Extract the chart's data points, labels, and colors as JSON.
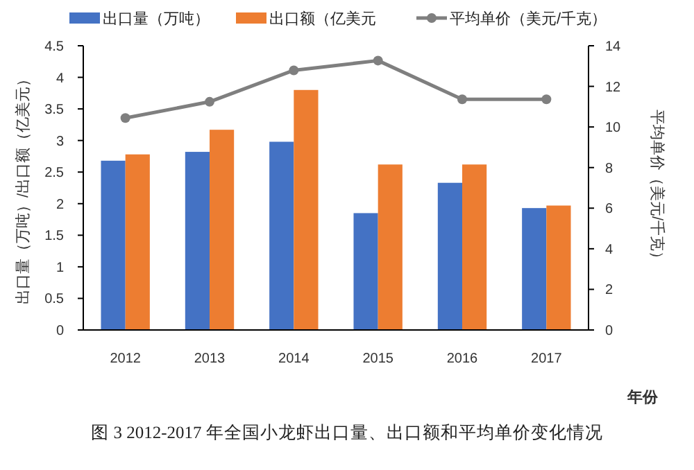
{
  "chart_data": {
    "type": "bar",
    "categories": [
      "2012",
      "2013",
      "2014",
      "2015",
      "2016",
      "2017"
    ],
    "series": [
      {
        "name": "出口量（万吨）",
        "color": "#4472c4",
        "values": [
          2.68,
          2.82,
          2.98,
          1.85,
          2.33,
          1.93
        ]
      },
      {
        "name": "出口额（亿美元",
        "color": "#ed7d31",
        "values": [
          2.78,
          3.17,
          3.8,
          2.62,
          2.62,
          1.97
        ]
      },
      {
        "name": "平均单价（美元/千克）",
        "type": "line",
        "axis": "y2",
        "color": "#7f7f7f",
        "marker": "circle",
        "values": [
          10.44,
          11.24,
          12.79,
          13.27,
          11.36,
          11.36
        ]
      }
    ],
    "ylim": [
      0,
      4.5
    ],
    "yticks": [
      0,
      0.5,
      1,
      1.5,
      2,
      2.5,
      3,
      3.5,
      4,
      4.5
    ],
    "y2lim": [
      0,
      14
    ],
    "y2ticks": [
      0,
      2,
      4,
      6,
      8,
      10,
      12,
      14
    ],
    "ylabel": "出口量（万吨）/出口额（亿美元）",
    "y2label": "平均单价（美元/千克）",
    "xlabel": "年份",
    "legend": "top",
    "grid": false,
    "annotations": [
      "图 3 2012-2017 年全国小龙虾出口量、出口额和平均单价变化情况"
    ]
  }
}
